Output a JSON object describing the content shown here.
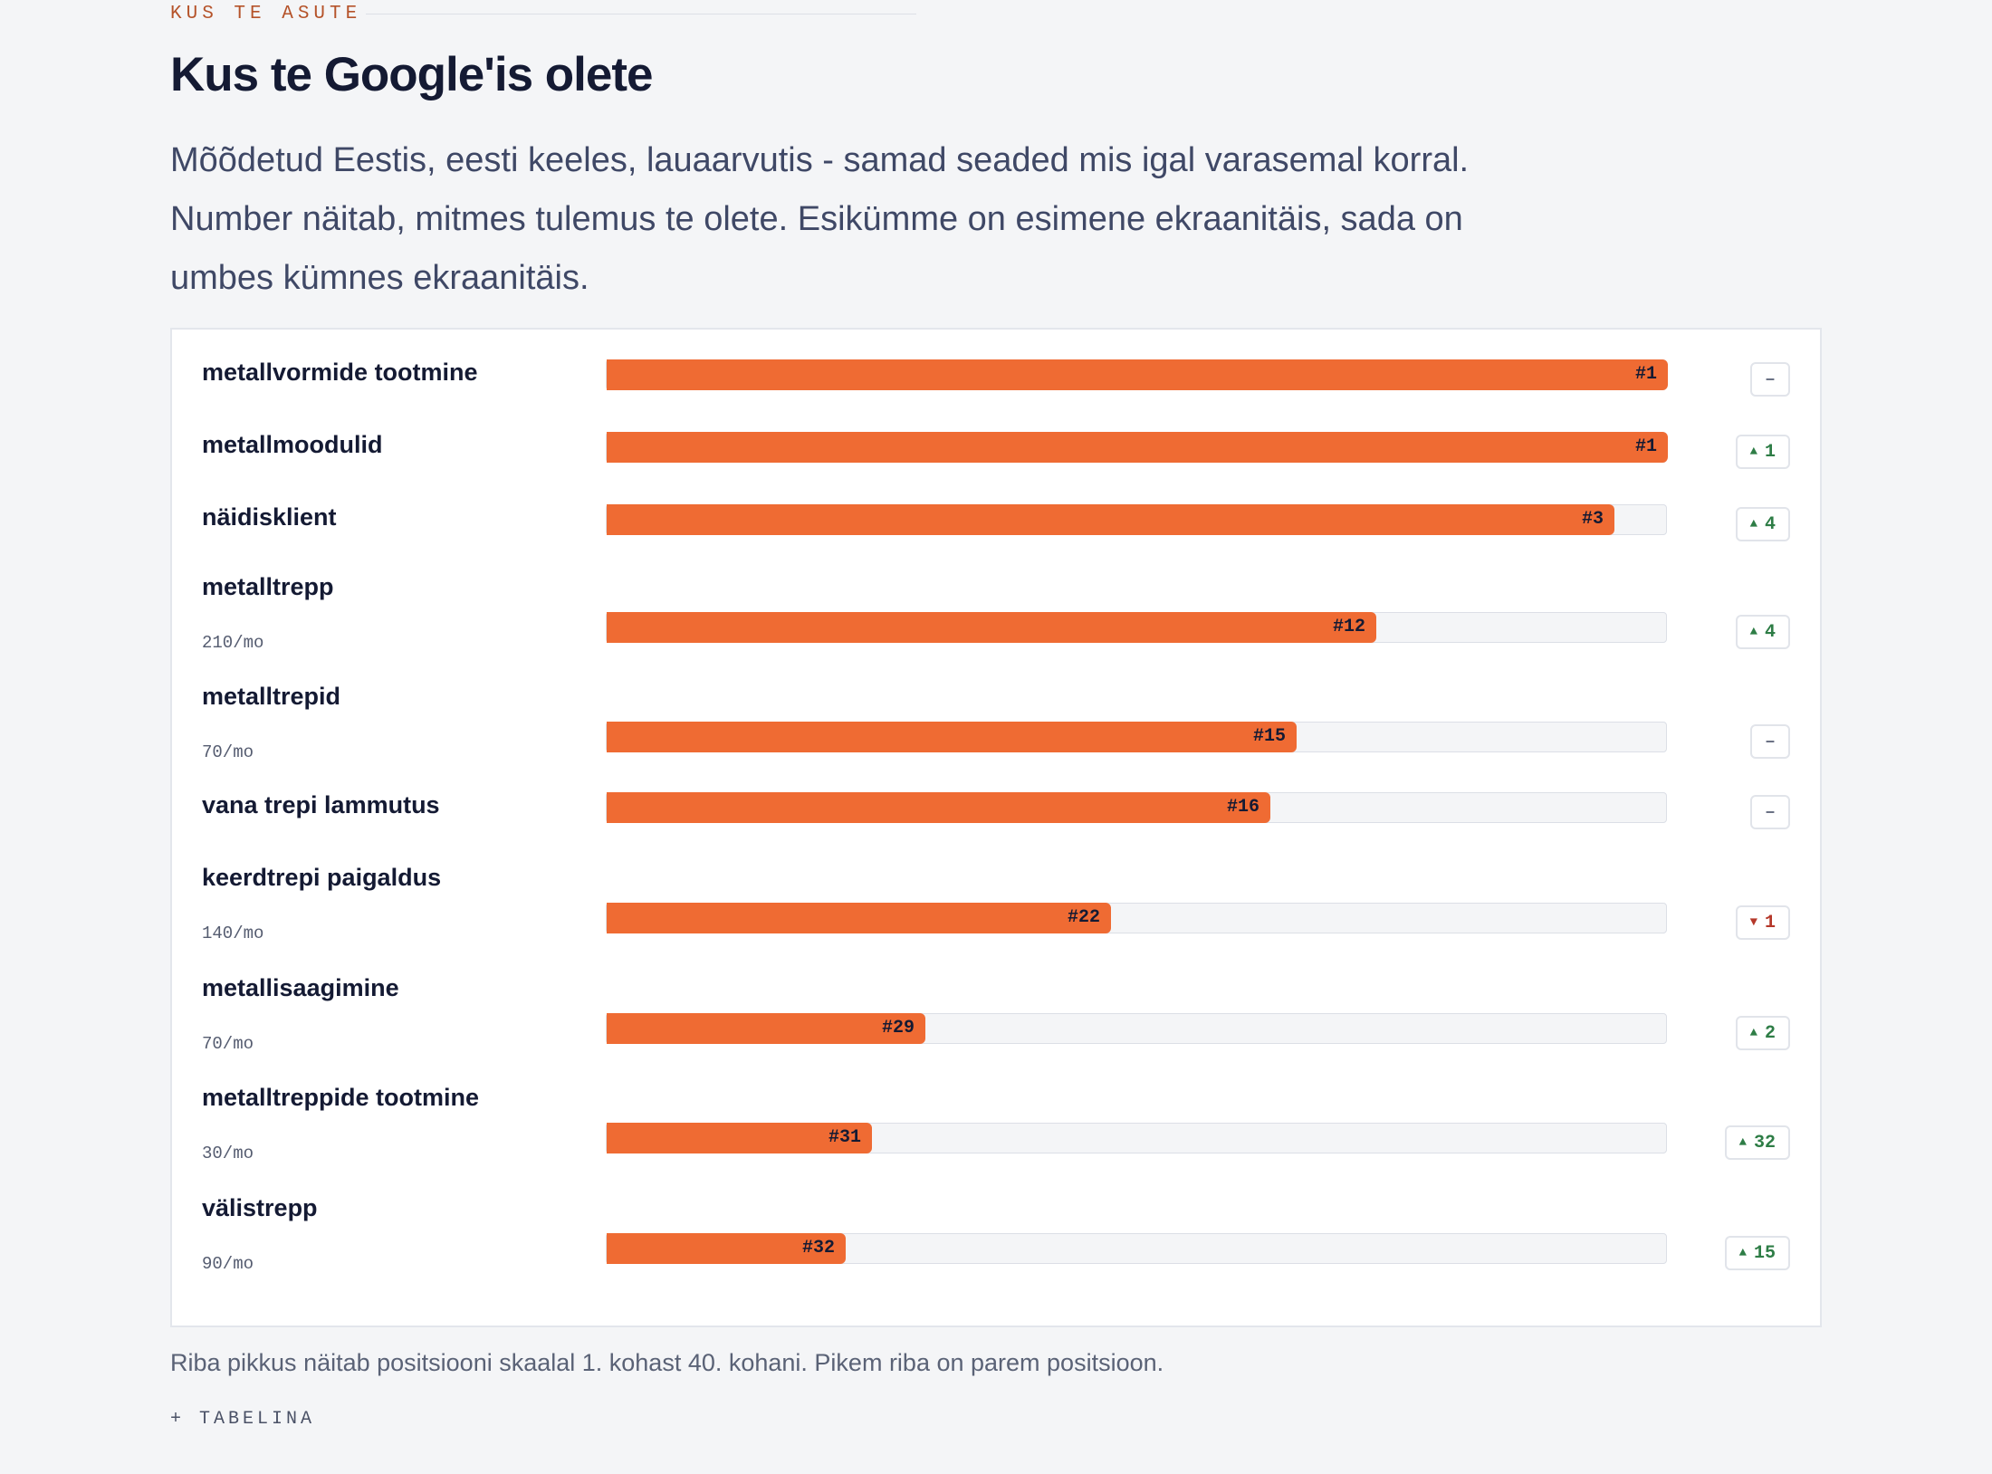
{
  "section": {
    "eyebrow": "KUS TE ASUTE",
    "title": "Kus te Google'is olete",
    "lead": "Mõõdetud Eestis, eesti keeles, lauaarvutis - samad seaded mis igal varasemal korral. Number näitab, mitmes tulemus te olete. Esikümme on esimene ekraanitäis, sada on umbes kümnes ekraanitäis."
  },
  "chart_data": {
    "type": "bar",
    "scale_note": "positions 1 to 40, longer bar = better position",
    "categories": [
      "metallvormide tootmine",
      "metallmoodulid",
      "näidisklient",
      "metalltrepp",
      "metalltrepid",
      "vana trepi lammutus",
      "keerdtrepi paigaldus",
      "metallisaagimine",
      "metalltreppide tootmine",
      "välistrepp"
    ],
    "values": [
      1,
      1,
      3,
      12,
      15,
      16,
      22,
      29,
      31,
      32
    ],
    "position_labels": [
      "#1",
      "#1",
      "#3",
      "#12",
      "#15",
      "#16",
      "#22",
      "#29",
      "#31",
      "#32"
    ],
    "volumes": [
      "",
      "",
      "",
      "210/mo",
      "70/mo",
      "",
      "140/mo",
      "70/mo",
      "30/mo",
      "90/mo"
    ],
    "changes": [
      {
        "dir": "flat",
        "value": "–"
      },
      {
        "dir": "up",
        "value": "1"
      },
      {
        "dir": "up",
        "value": "4"
      },
      {
        "dir": "up",
        "value": "4"
      },
      {
        "dir": "flat",
        "value": "–"
      },
      {
        "dir": "flat",
        "value": "–"
      },
      {
        "dir": "down",
        "value": "1"
      },
      {
        "dir": "up",
        "value": "2"
      },
      {
        "dir": "up",
        "value": "32"
      },
      {
        "dir": "up",
        "value": "15"
      }
    ],
    "colors": {
      "bar": "#ef6b33",
      "up": "#2e7d46",
      "down": "#b5382a"
    }
  },
  "footer": {
    "note": "Riba pikkus näitab positsiooni skaalal 1. kohast 40. kohani. Pikem riba on parem positsioon.",
    "toggle_label": "+ TABELINA"
  }
}
